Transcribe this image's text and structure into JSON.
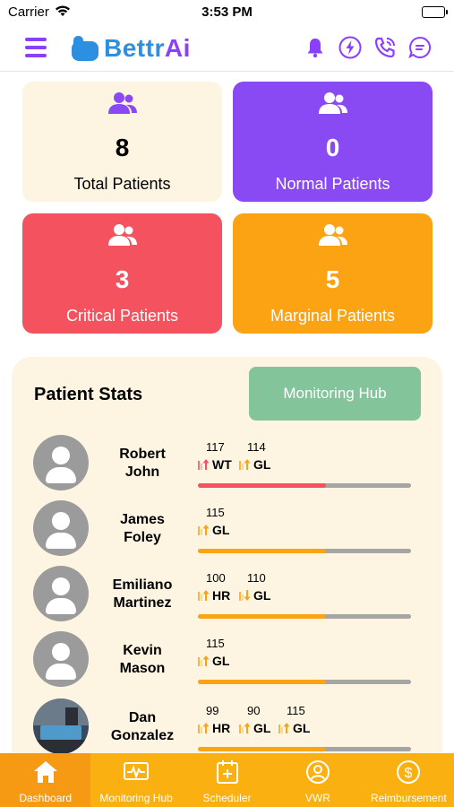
{
  "status_bar": {
    "carrier": "Carrier",
    "time": "3:53 PM"
  },
  "header": {
    "logo_text_main": "Bettr",
    "logo_text_accent": "Ai",
    "icons": [
      "menu-icon",
      "bell-icon",
      "lightning-icon",
      "phone-icon",
      "chat-icon"
    ],
    "brand_blue": "#2d8fe0",
    "brand_purple": "#8a3ffc"
  },
  "summary_cards": [
    {
      "id": "total",
      "count": "8",
      "label": "Total Patients",
      "color": "#fdf5e2",
      "icon": "patients-icon"
    },
    {
      "id": "normal",
      "count": "0",
      "label": "Normal Patients",
      "color": "#8a4af3",
      "icon": "patients-icon"
    },
    {
      "id": "critical",
      "count": "3",
      "label": "Critical Patients",
      "color": "#f4525f",
      "icon": "patients-icon"
    },
    {
      "id": "marginal",
      "count": "5",
      "label": "Marginal Patients",
      "color": "#fba313",
      "icon": "patients-icon"
    }
  ],
  "patient_stats": {
    "title": "Patient Stats",
    "monitoring_button": "Monitoring Hub",
    "patients": [
      {
        "name_line1": "Robert",
        "name_line2": "John",
        "vitals": [
          {
            "value": "117",
            "label": "WT",
            "trend": "up",
            "arrow_color": "#f4525f"
          },
          {
            "value": "114",
            "label": "GL",
            "trend": "up",
            "arrow_color": "#fba313"
          }
        ],
        "progress": 0.6,
        "bar_color": "#f4525f"
      },
      {
        "name_line1": "James",
        "name_line2": "Foley",
        "vitals": [
          {
            "value": "115",
            "label": "GL",
            "trend": "up",
            "arrow_color": "#fba313"
          }
        ],
        "progress": 0.6,
        "bar_color": "#fba313"
      },
      {
        "name_line1": "Emiliano",
        "name_line2": "Martinez",
        "vitals": [
          {
            "value": "100",
            "label": "HR",
            "trend": "up",
            "arrow_color": "#fba313"
          },
          {
            "value": "110",
            "label": "GL",
            "trend": "down",
            "arrow_color": "#fba313"
          }
        ],
        "progress": 0.6,
        "bar_color": "#fba313"
      },
      {
        "name_line1": "Kevin",
        "name_line2": "Mason",
        "vitals": [
          {
            "value": "115",
            "label": "GL",
            "trend": "up",
            "arrow_color": "#fba313"
          }
        ],
        "progress": 0.6,
        "bar_color": "#fba313"
      },
      {
        "name_line1": "Dan",
        "name_line2": "Gonzalez",
        "photo": true,
        "vitals": [
          {
            "value": "99",
            "label": "HR",
            "trend": "up",
            "arrow_color": "#fba313"
          },
          {
            "value": "90",
            "label": "GL",
            "trend": "up",
            "arrow_color": "#fba313"
          },
          {
            "value": "115",
            "label": "GL",
            "trend": "up",
            "arrow_color": "#fba313"
          }
        ],
        "progress": 0.6,
        "bar_color": "#fba313"
      }
    ]
  },
  "tabbar": {
    "tabs": [
      {
        "label": "Dashboard",
        "icon": "home-icon",
        "active": true
      },
      {
        "label": "Monitoring Hub",
        "icon": "monitor-icon",
        "active": false
      },
      {
        "label": "Scheduler",
        "icon": "calendar-icon",
        "active": false
      },
      {
        "label": "VWR",
        "icon": "vwr-icon",
        "active": false
      },
      {
        "label": "Reimbursement",
        "icon": "dollar-icon",
        "active": false
      }
    ],
    "bar_color": "#fbb012",
    "active_color": "#f79a13"
  }
}
